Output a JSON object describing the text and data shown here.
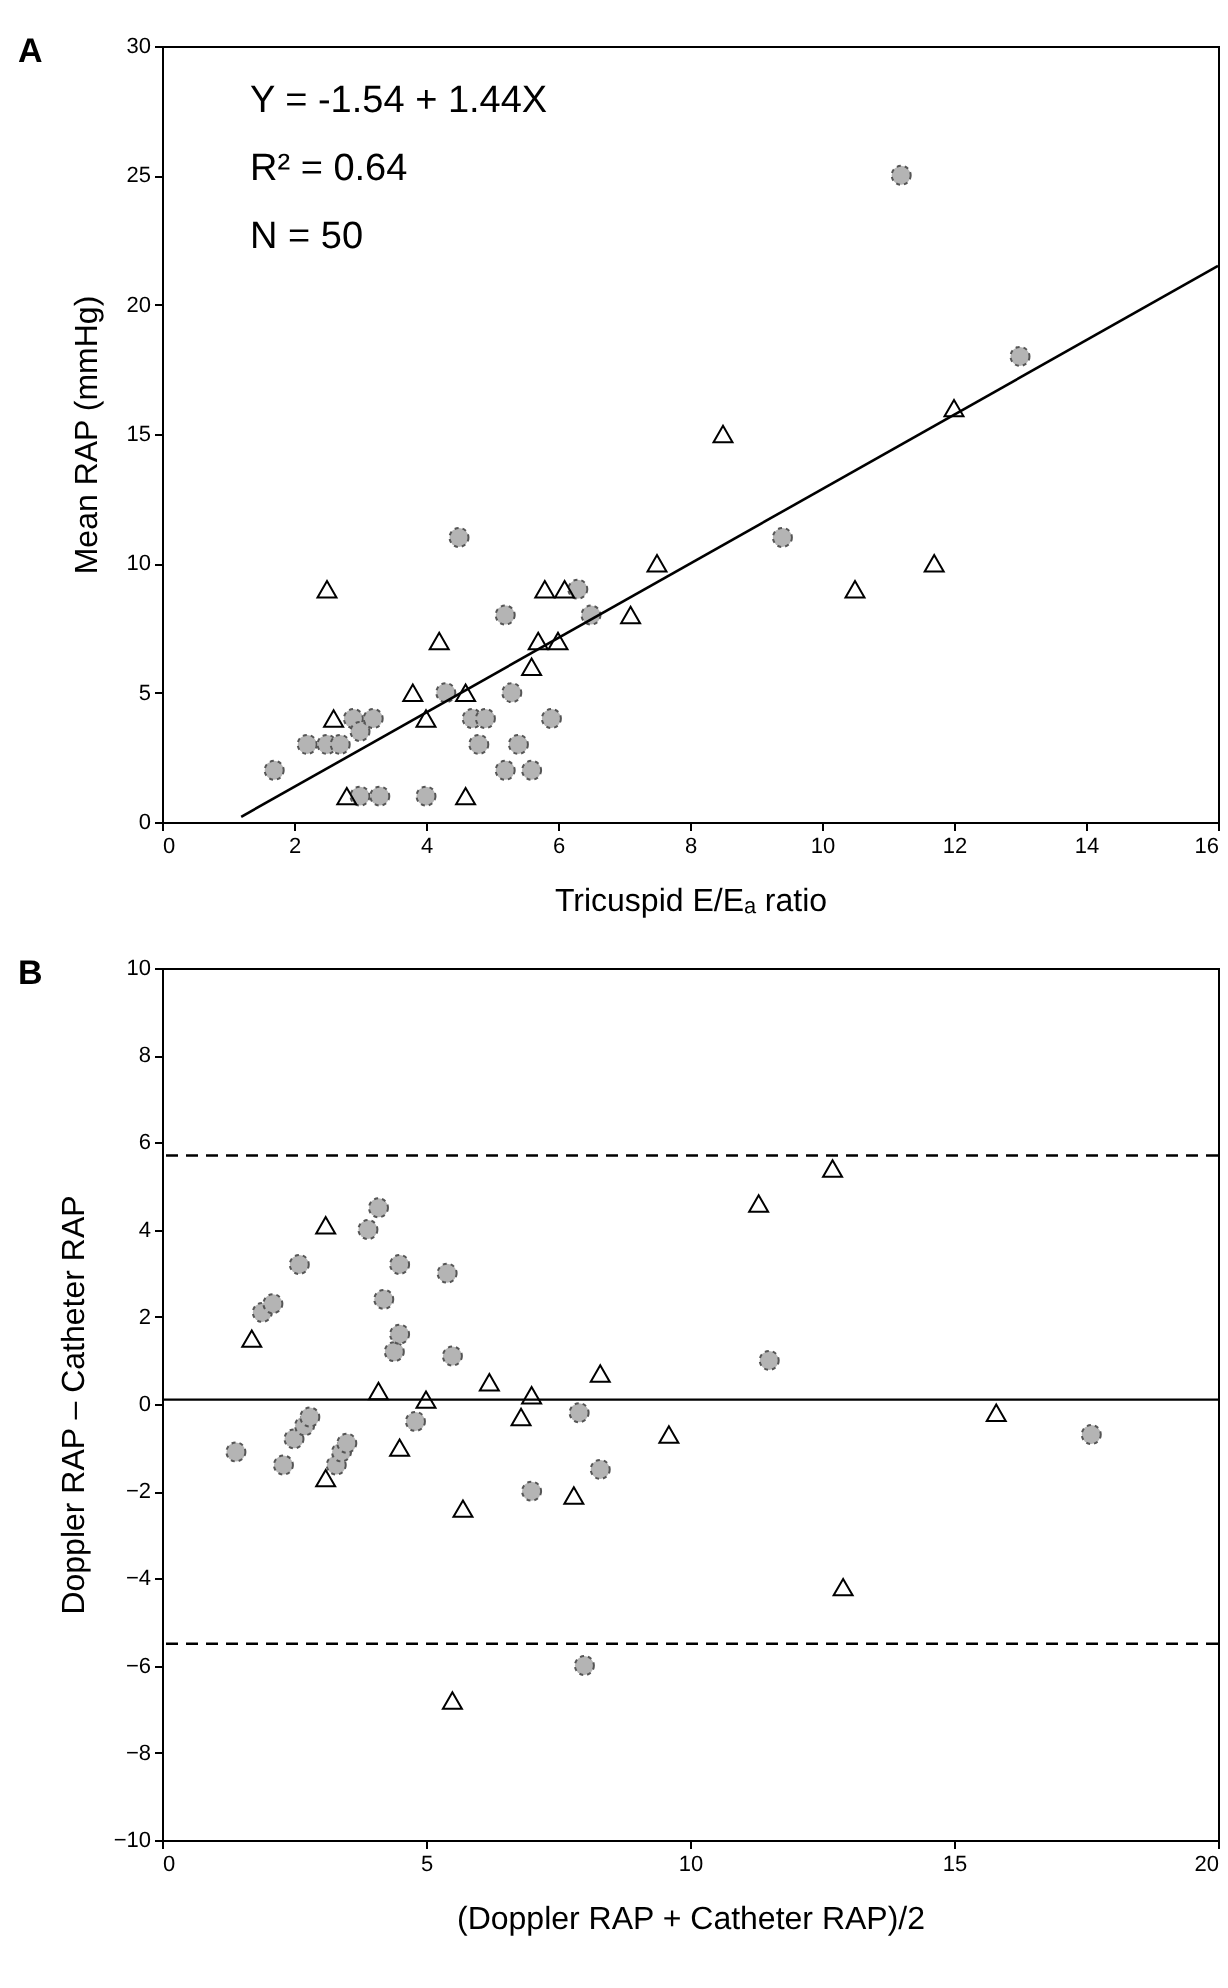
{
  "chart_data": [
    {
      "type": "scatter",
      "title": "A",
      "xlabel": "Tricuspid E/Eₐ ratio",
      "ylabel": "Mean RAP (mmHg)",
      "xlim": [
        0,
        16
      ],
      "xticks": [
        0,
        2,
        4,
        6,
        8,
        10,
        12,
        14,
        16
      ],
      "ylim": [
        0,
        30
      ],
      "yticks": [
        0,
        5,
        10,
        15,
        20,
        25,
        30
      ],
      "grid": false,
      "annotations": [
        "Y = -1.54 + 1.44X",
        "R² = 0.64",
        "N = 50"
      ],
      "series": [
        {
          "type": "scatter",
          "marker": "circle",
          "color": "#b4b4b4",
          "x": [
            1.7,
            2.2,
            2.5,
            2.7,
            2.9,
            3.0,
            3.2,
            3.0,
            3.3,
            4.0,
            4.5,
            4.3,
            4.7,
            4.9,
            4.8,
            5.2,
            5.3,
            5.4,
            5.2,
            5.6,
            5.9,
            6.3,
            6.5,
            9.4,
            11.2,
            13.0
          ],
          "values": [
            2,
            3,
            3,
            3,
            4,
            3.5,
            4,
            1,
            1,
            1,
            11,
            5,
            4,
            4,
            3,
            8,
            5,
            3,
            2,
            2,
            4,
            9,
            8,
            11,
            25,
            18
          ]
        },
        {
          "type": "scatter",
          "marker": "triangle",
          "color": "#000000",
          "x": [
            2.5,
            2.6,
            2.8,
            3.8,
            4.0,
            4.2,
            4.6,
            4.6,
            5.6,
            5.7,
            5.8,
            6.0,
            6.1,
            7.1,
            7.5,
            8.5,
            10.5,
            11.7,
            12.0
          ],
          "values": [
            9,
            4,
            1,
            5,
            4,
            7,
            5,
            1,
            6,
            7,
            9,
            7,
            9,
            8,
            10,
            15,
            9,
            10,
            16
          ]
        },
        {
          "type": "line",
          "line_style": "solid",
          "color": "#000000",
          "x": [
            1.2,
            16
          ],
          "values": [
            0.2,
            21.5
          ]
        }
      ]
    },
    {
      "type": "scatter",
      "title": "B",
      "xlabel": "(Doppler RAP + Catheter RAP)/2",
      "ylabel": "Doppler RAP – Catheter RAP",
      "xlim": [
        0,
        20
      ],
      "xticks": [
        0,
        5,
        10,
        15,
        20
      ],
      "ylim": [
        -10,
        10
      ],
      "yticks": [
        -10,
        -8,
        -6,
        -4,
        -2,
        0,
        2,
        4,
        6,
        8,
        10
      ],
      "grid": false,
      "ref_lines": [
        {
          "axis": "y",
          "value": 0.1,
          "line_style": "solid",
          "color": "#000000"
        },
        {
          "axis": "y",
          "value": 5.7,
          "line_style": "dashed",
          "color": "#000000"
        },
        {
          "axis": "y",
          "value": -5.5,
          "line_style": "dashed",
          "color": "#000000"
        }
      ],
      "series": [
        {
          "type": "scatter",
          "marker": "circle",
          "color": "#b4b4b4",
          "x": [
            1.4,
            2.3,
            2.5,
            2.7,
            2.8,
            3.3,
            3.4,
            3.5,
            1.9,
            2.1,
            2.6,
            3.9,
            4.1,
            4.2,
            4.5,
            4.4,
            4.5,
            5.5,
            5.4,
            4.8,
            7.0,
            7.9,
            8.0,
            8.3,
            11.5,
            17.6
          ],
          "values": [
            -1.1,
            -1.4,
            -0.8,
            -0.5,
            -0.3,
            -1.4,
            -1.1,
            -0.9,
            2.1,
            2.3,
            3.2,
            4.0,
            4.5,
            2.4,
            3.2,
            1.2,
            1.6,
            1.1,
            3.0,
            -0.4,
            -2.0,
            -0.2,
            -6.0,
            -1.5,
            1.0,
            -0.7
          ]
        },
        {
          "type": "scatter",
          "marker": "triangle",
          "color": "#000000",
          "x": [
            1.7,
            3.1,
            3.1,
            4.1,
            4.5,
            5.0,
            5.5,
            5.7,
            6.2,
            6.8,
            7.0,
            7.8,
            8.3,
            9.6,
            11.3,
            12.7,
            12.9,
            15.8
          ],
          "values": [
            1.5,
            4.1,
            -1.7,
            0.3,
            -1.0,
            0.1,
            -6.8,
            -2.4,
            0.5,
            -0.3,
            0.2,
            -2.1,
            0.7,
            -0.7,
            4.6,
            5.4,
            -4.2,
            -0.2
          ]
        }
      ]
    }
  ]
}
